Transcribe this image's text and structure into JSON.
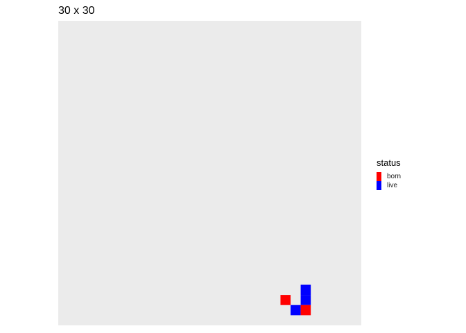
{
  "chart_data": {
    "type": "heatmap",
    "title": "30 x 30",
    "grid_size": [
      30,
      30
    ],
    "panel_background": "#EBEBEB",
    "legend": {
      "title": "status",
      "position": "right",
      "entries": [
        {
          "label": "born",
          "color": "#FF0000"
        },
        {
          "label": "live",
          "color": "#0000FF"
        }
      ]
    },
    "cells": [
      {
        "col": 24,
        "row": 26,
        "status": "live"
      },
      {
        "col": 24,
        "row": 27,
        "status": "live"
      },
      {
        "col": 22,
        "row": 27,
        "status": "born"
      },
      {
        "col": 23,
        "row": 28,
        "status": "live"
      },
      {
        "col": 24,
        "row": 28,
        "status": "born"
      }
    ]
  }
}
